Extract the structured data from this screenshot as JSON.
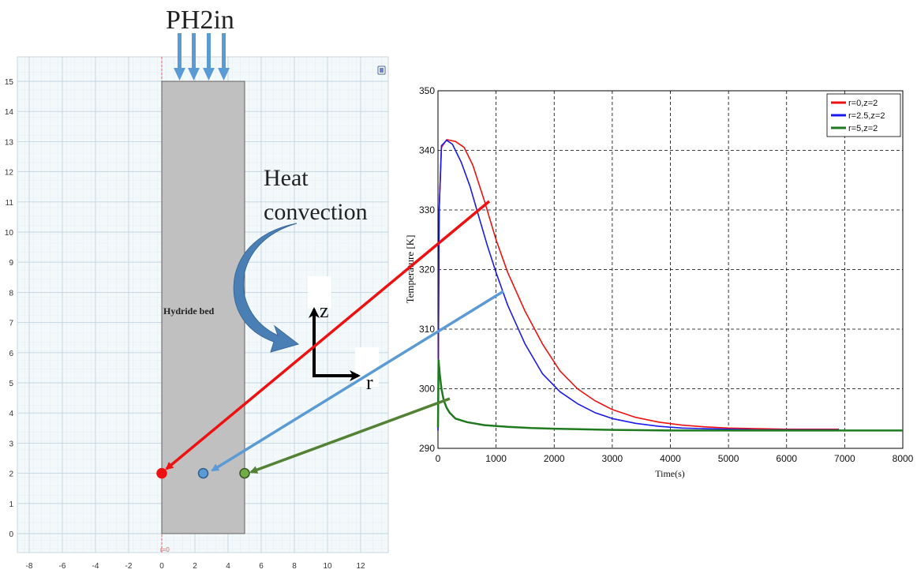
{
  "inlet_label": "PH2in",
  "heat_label_line1": "Heat",
  "heat_label_line2": "convection",
  "bed_label": "Hydride bed",
  "axis_z": "z",
  "axis_r": "r",
  "r0_marker": "r=0",
  "colors": {
    "red": "#ee1111",
    "blue": "#1a1aee",
    "green": "#1f7a1f",
    "arrow_red": "#ee1111",
    "arrow_blue": "#5b9bd5",
    "arrow_green": "#548235",
    "bed_fill": "#c0c0c0",
    "grid_bg": "#f3f8fb",
    "inlet_arrow": "#5b9bd5",
    "heat_arrow": "#4a7fb5"
  },
  "geometry_plot": {
    "x_ticks": [
      "-8",
      "-6",
      "-4",
      "-2",
      "0",
      "2",
      "4",
      "6",
      "8",
      "10",
      "12"
    ],
    "y_ticks": [
      "0",
      "1",
      "2",
      "3",
      "4",
      "5",
      "6",
      "7",
      "8",
      "9",
      "10",
      "11",
      "12",
      "13",
      "14",
      "15"
    ],
    "xlim": [
      -8,
      13
    ],
    "ylim": [
      -0.2,
      15.5
    ],
    "bed": {
      "r_min": 0,
      "r_max": 5,
      "z_min": 0,
      "z_max": 15
    },
    "points": [
      {
        "r": 0,
        "z": 2,
        "color": "red"
      },
      {
        "r": 2.5,
        "z": 2,
        "color": "blue"
      },
      {
        "r": 5,
        "z": 2,
        "color": "green"
      }
    ]
  },
  "chart_data": {
    "type": "line",
    "title": "",
    "xlabel": "Time(s)",
    "ylabel": "Temperature [K]",
    "xlim": [
      0,
      8000
    ],
    "ylim": [
      290,
      350
    ],
    "x_ticks": [
      "0",
      "1000",
      "2000",
      "3000",
      "4000",
      "5000",
      "6000",
      "7000",
      "8000"
    ],
    "y_ticks": [
      "290",
      "300",
      "310",
      "320",
      "330",
      "340",
      "350"
    ],
    "grid": true,
    "legend_position": "top-right",
    "series": [
      {
        "name": "r=0,z=2",
        "color": "red",
        "x": [
          0,
          20,
          60,
          150,
          300,
          450,
          600,
          800,
          1000,
          1200,
          1500,
          1800,
          2100,
          2400,
          2700,
          3000,
          3400,
          3800,
          4200,
          4600,
          5000,
          5500,
          6000,
          6500,
          6900
        ],
        "y": [
          293,
          330,
          340.5,
          341.8,
          341.5,
          340.5,
          337.5,
          331.5,
          325,
          319.5,
          313,
          307.5,
          303,
          300,
          298,
          296.5,
          295.2,
          294.4,
          293.9,
          293.6,
          293.4,
          293.3,
          293.2,
          293.2,
          293.2
        ]
      },
      {
        "name": "r=2.5,z=2",
        "color": "blue",
        "x": [
          0,
          20,
          60,
          150,
          250,
          400,
          550,
          700,
          850,
          1000,
          1200,
          1500,
          1800,
          2100,
          2400,
          2700,
          3000,
          3400,
          3800,
          4200,
          4600,
          5000,
          5500,
          6000,
          6500,
          6900
        ],
        "y": [
          293,
          330,
          340.8,
          341.7,
          341,
          338,
          334,
          329,
          324,
          319.5,
          314,
          307.5,
          302.5,
          299.5,
          297.5,
          296,
          295,
          294.2,
          293.7,
          293.4,
          293.3,
          293.2,
          293.1,
          293.1,
          293.1,
          293.1
        ]
      },
      {
        "name": "r=5,z=2",
        "color": "green",
        "x": [
          0,
          10,
          30,
          60,
          100,
          150,
          200,
          300,
          500,
          800,
          1200,
          1600,
          2000,
          3000,
          4000,
          5000,
          6000,
          7000,
          8000
        ],
        "y": [
          293.5,
          304.8,
          302.5,
          300,
          298,
          296.8,
          296,
          295,
          294.4,
          293.9,
          293.6,
          293.4,
          293.3,
          293.1,
          293.0,
          293.0,
          293.0,
          293.0,
          293.0
        ]
      }
    ]
  }
}
